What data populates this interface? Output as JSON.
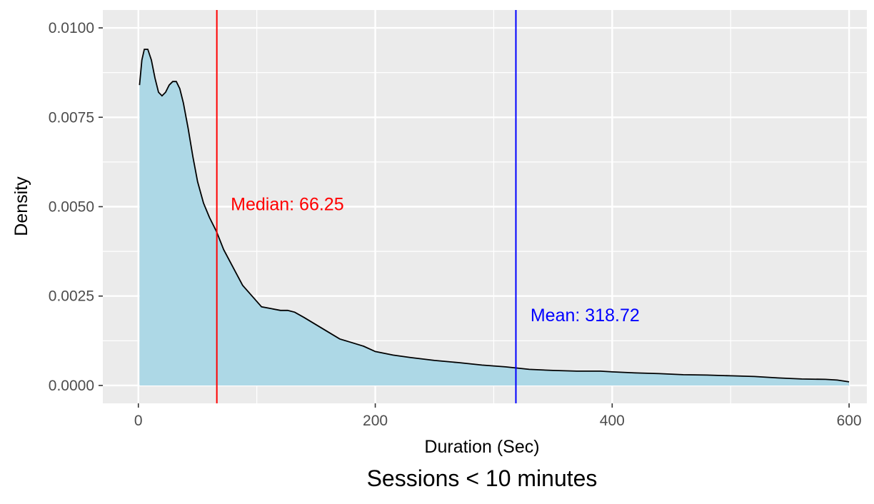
{
  "chart_data": {
    "type": "area",
    "title": "",
    "caption": "Sessions < 10 minutes",
    "xlabel": "Duration (Sec)",
    "ylabel": "Density",
    "xlim": [
      -30,
      615
    ],
    "ylim": [
      -0.0005,
      0.0105
    ],
    "x_ticks": [
      0,
      200,
      400,
      600
    ],
    "x_tick_labels": [
      "0",
      "200",
      "400",
      "600"
    ],
    "y_ticks": [
      0,
      0.0025,
      0.005,
      0.0075,
      0.01
    ],
    "y_tick_labels": [
      "0.0000",
      "0.0025",
      "0.0050",
      "0.0075",
      "0.0100"
    ],
    "grid": true,
    "fill_color": "#add8e6",
    "line_color": "#000000",
    "panel_background": "#ebebeb",
    "series": [
      {
        "x": [
          1,
          3,
          5,
          8,
          11,
          14,
          17,
          20,
          23,
          26,
          29,
          32,
          35,
          38,
          42,
          46,
          50,
          55,
          60,
          66,
          72,
          80,
          88,
          96,
          104,
          112,
          120,
          126,
          132,
          140,
          150,
          160,
          170,
          180,
          190,
          200,
          215,
          230,
          250,
          270,
          290,
          310,
          330,
          350,
          370,
          390,
          400,
          420,
          440,
          460,
          480,
          500,
          520,
          540,
          560,
          580,
          590,
          600
        ],
        "y": [
          0.0084,
          0.0091,
          0.0094,
          0.0094,
          0.0091,
          0.0086,
          0.0082,
          0.0081,
          0.0082,
          0.0084,
          0.0085,
          0.0085,
          0.0083,
          0.0079,
          0.0072,
          0.0064,
          0.0057,
          0.0051,
          0.0047,
          0.0043,
          0.0038,
          0.0033,
          0.0028,
          0.0025,
          0.0022,
          0.00215,
          0.0021,
          0.0021,
          0.00205,
          0.0019,
          0.0017,
          0.0015,
          0.0013,
          0.0012,
          0.0011,
          0.00095,
          0.00085,
          0.00078,
          0.0007,
          0.00064,
          0.00057,
          0.00052,
          0.00045,
          0.00042,
          0.0004,
          0.0004,
          0.00038,
          0.00035,
          0.00033,
          0.0003,
          0.00029,
          0.00027,
          0.00025,
          0.00021,
          0.00018,
          0.00017,
          0.00015,
          0.0001
        ]
      }
    ],
    "vlines": [
      {
        "x": 66.25,
        "color": "#ff0000",
        "label": "Median: 66.25",
        "label_x": 78,
        "label_y": 0.0049
      },
      {
        "x": 318.72,
        "color": "#0000ff",
        "label": "Mean: 318.72",
        "label_x": 331,
        "label_y": 0.0018
      }
    ]
  }
}
